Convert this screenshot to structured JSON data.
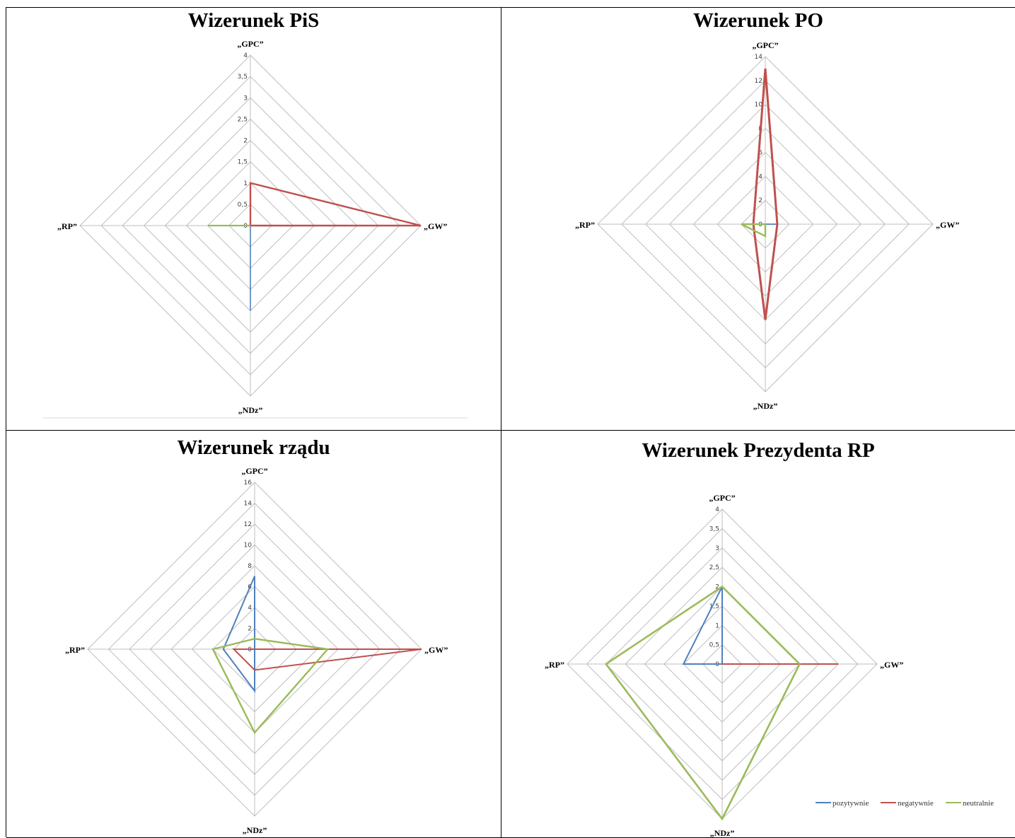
{
  "colors": {
    "pozytywnie": "#4f81bd",
    "negatywnie": "#c0504d",
    "neutralnie": "#9bbb59",
    "grid": "#bfbfbf",
    "axis": "#8c8c8c"
  },
  "chart_data": [
    {
      "type": "radar",
      "title": "Wizerunek PiS",
      "axes": [
        "„GPC”",
        "„GW”",
        "„NDz”",
        "„RP”"
      ],
      "ticks": [
        "0",
        "0,5",
        "1",
        "1,5",
        "2",
        "2,5",
        "3",
        "3,5",
        "4"
      ],
      "rmax": 4,
      "series": [
        {
          "name": "pozytywnie",
          "values": [
            0,
            0,
            2,
            0
          ]
        },
        {
          "name": "negatywnie",
          "values": [
            1,
            4,
            0,
            0
          ]
        },
        {
          "name": "neutralnie",
          "values": [
            0,
            0,
            0,
            1
          ]
        }
      ]
    },
    {
      "type": "radar",
      "title": "Wizerunek PO",
      "axes": [
        "„GPC”",
        "„GW”",
        "„NDz”",
        "„RP”"
      ],
      "ticks": [
        "0",
        "2",
        "4",
        "6",
        "8",
        "10",
        "12",
        "14"
      ],
      "rmax": 14,
      "series": [
        {
          "name": "pozytywnie",
          "values": [
            0,
            1,
            0,
            0
          ]
        },
        {
          "name": "negatywnie",
          "values": [
            13,
            1,
            8,
            1
          ]
        },
        {
          "name": "neutralnie",
          "values": [
            0,
            0,
            1,
            2
          ]
        }
      ]
    },
    {
      "type": "radar",
      "title": "Wizerunek rządu",
      "axes": [
        "„GPC”",
        "„GW”",
        "„NDz”",
        "„RP”"
      ],
      "ticks": [
        "0",
        "2",
        "4",
        "6",
        "8",
        "10",
        "12",
        "14",
        "16"
      ],
      "rmax": 16,
      "series": [
        {
          "name": "pozytywnie",
          "values": [
            7,
            0,
            4,
            3
          ]
        },
        {
          "name": "negatywnie",
          "values": [
            0,
            16,
            2,
            2
          ]
        },
        {
          "name": "neutralnie",
          "values": [
            1,
            7,
            8,
            4
          ]
        }
      ]
    },
    {
      "type": "radar",
      "title": "Wizerunek Prezydenta RP",
      "axes": [
        "„GPC”",
        "„GW”",
        "„NDz”",
        "„RP”"
      ],
      "ticks": [
        "0",
        "0,5",
        "1",
        "1,5",
        "2",
        "2,5",
        "3",
        "3,5",
        "4"
      ],
      "rmax": 4,
      "legend": "bottom-right",
      "series": [
        {
          "name": "pozytywnie",
          "values": [
            2,
            0,
            0,
            1
          ]
        },
        {
          "name": "negatywnie",
          "values": [
            0,
            3,
            0,
            0
          ]
        },
        {
          "name": "neutralnie",
          "values": [
            2,
            2,
            4,
            3
          ]
        }
      ]
    }
  ]
}
